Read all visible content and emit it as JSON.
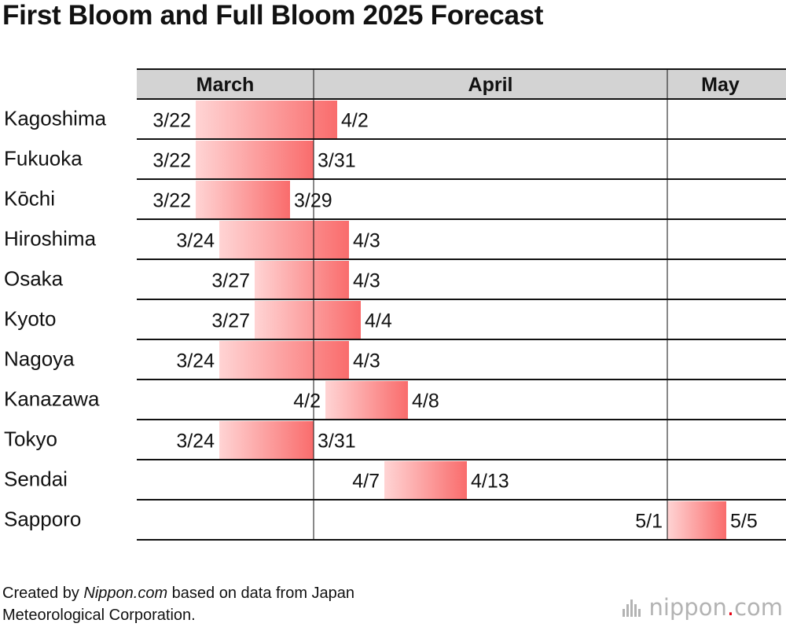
{
  "title": "First Bloom and Full Bloom 2025 Forecast",
  "footnote": {
    "prefix": "Created by ",
    "source_name": "Nippon.com",
    "suffix": " based on data from Japan",
    "line2": "Meteorological Corporation."
  },
  "logo": {
    "text_before_dot": "nippon",
    "dot": ".",
    "text_after_dot": "com"
  },
  "colors": {
    "header_bg": "#d3d3d3",
    "bar_start": "#ffd4d4",
    "bar_end": "#f96c6c",
    "line": "#111111"
  },
  "chart_data": {
    "type": "gantt",
    "title": "First Bloom and Full Bloom 2025 Forecast",
    "months": [
      {
        "label": "March",
        "first_day": "3/17",
        "last_day": "3/31"
      },
      {
        "label": "April",
        "first_day": "4/1",
        "last_day": "4/30"
      },
      {
        "label": "May",
        "first_day": "5/1",
        "last_day": "5/9"
      }
    ],
    "series": [
      {
        "city": "Kagoshima",
        "first_bloom": "3/22",
        "full_bloom": "4/2"
      },
      {
        "city": "Fukuoka",
        "first_bloom": "3/22",
        "full_bloom": "3/31"
      },
      {
        "city": "Kōchi",
        "first_bloom": "3/22",
        "full_bloom": "3/29"
      },
      {
        "city": "Hiroshima",
        "first_bloom": "3/24",
        "full_bloom": "4/3"
      },
      {
        "city": "Osaka",
        "first_bloom": "3/27",
        "full_bloom": "4/3"
      },
      {
        "city": "Kyoto",
        "first_bloom": "3/27",
        "full_bloom": "4/4"
      },
      {
        "city": "Nagoya",
        "first_bloom": "3/24",
        "full_bloom": "4/3"
      },
      {
        "city": "Kanazawa",
        "first_bloom": "4/2",
        "full_bloom": "4/8"
      },
      {
        "city": "Tokyo",
        "first_bloom": "3/24",
        "full_bloom": "3/31"
      },
      {
        "city": "Sendai",
        "first_bloom": "4/7",
        "full_bloom": "4/13"
      },
      {
        "city": "Sapporo",
        "first_bloom": "5/1",
        "full_bloom": "5/5"
      }
    ]
  }
}
